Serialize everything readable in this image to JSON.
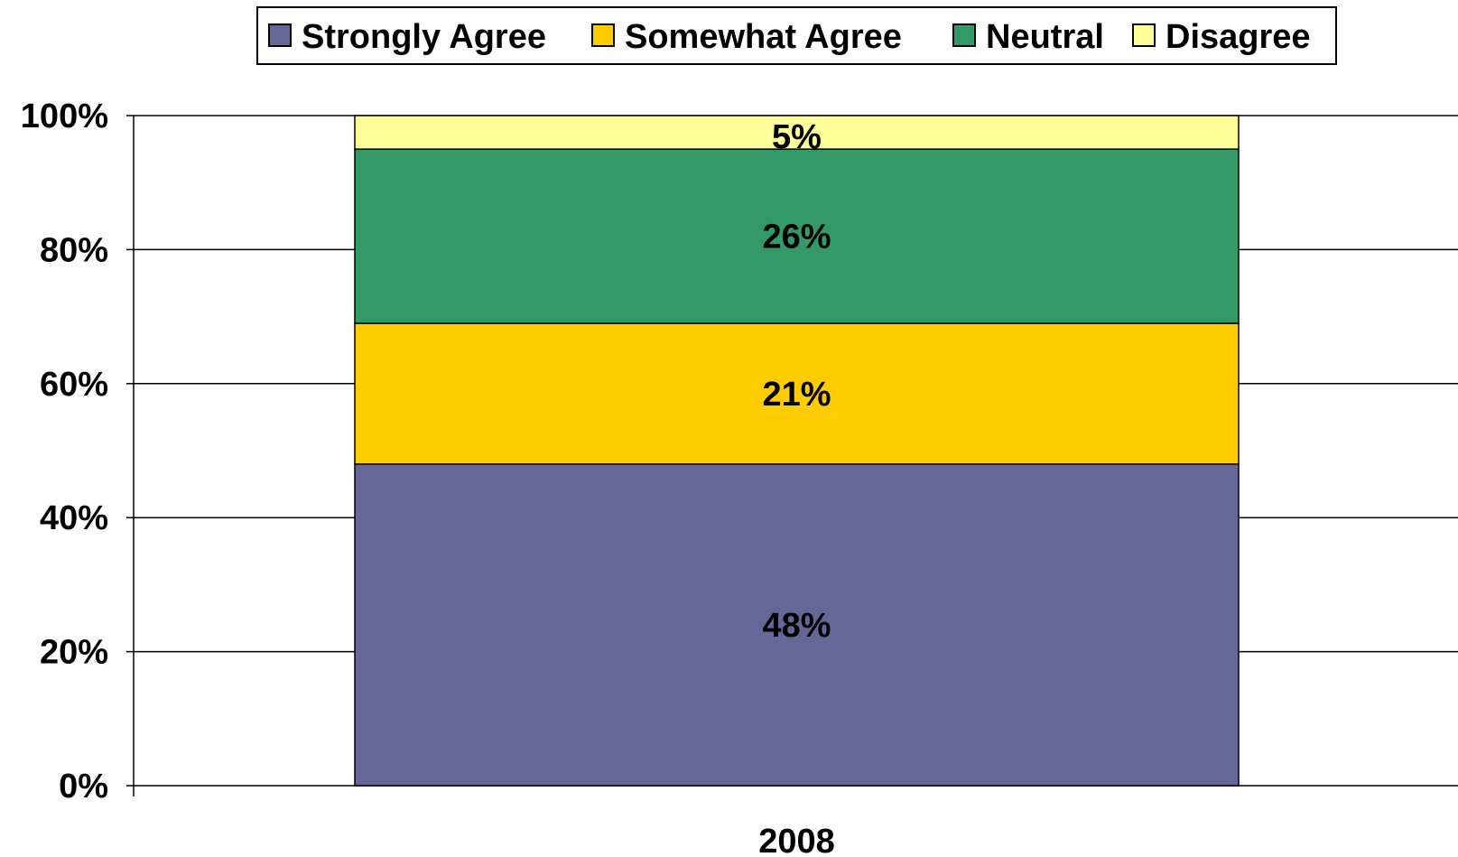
{
  "chart_data": {
    "type": "bar",
    "stacked": true,
    "categories": [
      "2008"
    ],
    "series": [
      {
        "name": "Strongly Agree",
        "values": [
          48
        ],
        "label": "48%",
        "color": "#666699"
      },
      {
        "name": "Somewhat Agree",
        "values": [
          21
        ],
        "label": "21%",
        "color": "#FFCC00"
      },
      {
        "name": "Neutral",
        "values": [
          26
        ],
        "label": "26%",
        "color": "#339966"
      },
      {
        "name": "Disagree",
        "values": [
          5
        ],
        "label": "5%",
        "color": "#FFFF99"
      }
    ],
    "ylim": [
      0,
      100
    ],
    "yticks": [
      "0%",
      "20%",
      "40%",
      "60%",
      "80%",
      "100%"
    ],
    "grid": true,
    "legend_position": "top"
  }
}
